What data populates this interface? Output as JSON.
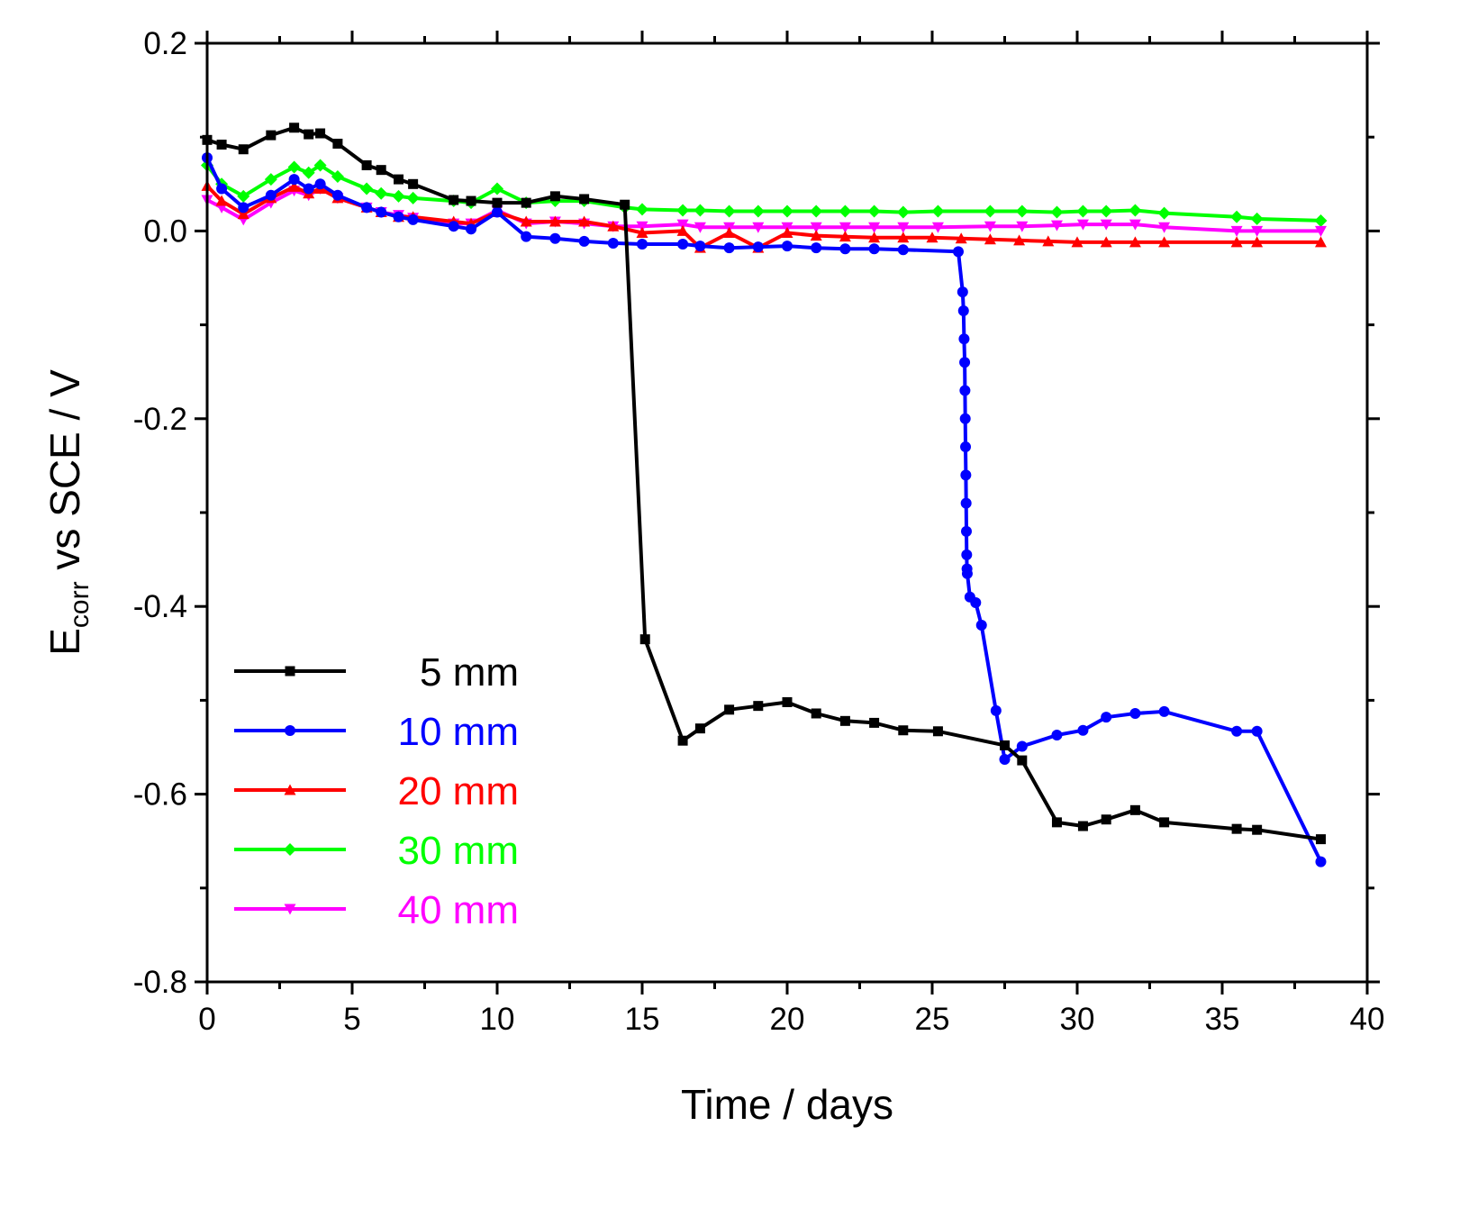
{
  "chart_data": {
    "type": "line",
    "title": "",
    "xlabel": "Time / days",
    "ylabel_main": "E",
    "ylabel_sub": "corr",
    "ylabel_rest": " vs SCE / V",
    "xlim": [
      0,
      40
    ],
    "ylim": [
      -0.8,
      0.2
    ],
    "xticks": [
      0,
      5,
      10,
      15,
      20,
      25,
      30,
      35,
      40
    ],
    "xtick_labels": [
      "0",
      "5",
      "10",
      "15",
      "20",
      "25",
      "30",
      "35",
      "40"
    ],
    "yticks": [
      -0.8,
      -0.6,
      -0.4,
      -0.2,
      0.0,
      0.2
    ],
    "ytick_labels": [
      "-0.8",
      "-0.6",
      "-0.4",
      "-0.2",
      "0.0",
      "0.2"
    ],
    "grid": false,
    "legend_position": "bottom-left",
    "series": [
      {
        "name": "5 mm",
        "color": "#000000",
        "marker": "square",
        "x": [
          0,
          0.5,
          1.25,
          2.2,
          3,
          3.5,
          3.9,
          4.5,
          5.5,
          6,
          6.6,
          7.1,
          8.5,
          9.1,
          10,
          11,
          12,
          13,
          14.4,
          15.1,
          16.4,
          17,
          18,
          19,
          20,
          21,
          22,
          23,
          24,
          25.2,
          27.5,
          28.1,
          29.3,
          30.2,
          31,
          32,
          33,
          35.5,
          36.2,
          38.4
        ],
        "y": [
          0.097,
          0.092,
          0.087,
          0.102,
          0.11,
          0.103,
          0.104,
          0.093,
          0.07,
          0.065,
          0.055,
          0.05,
          0.033,
          0.032,
          0.03,
          0.03,
          0.037,
          0.034,
          0.028,
          -0.435,
          -0.543,
          -0.53,
          -0.51,
          -0.506,
          -0.502,
          -0.514,
          -0.522,
          -0.524,
          -0.532,
          -0.533,
          -0.548,
          -0.564,
          -0.63,
          -0.634,
          -0.627,
          -0.617,
          -0.63,
          -0.637,
          -0.638,
          -0.648
        ]
      },
      {
        "name": "10 mm",
        "color": "#0000FF",
        "marker": "circle",
        "x": [
          0,
          0.5,
          1.25,
          2.2,
          3,
          3.5,
          3.9,
          4.5,
          5.5,
          6,
          6.6,
          7.1,
          8.5,
          9.1,
          10,
          11,
          12,
          13,
          14,
          15,
          16.4,
          17,
          18,
          19,
          20,
          21,
          22,
          23,
          24,
          25.9,
          26.05,
          26.08,
          26.1,
          26.12,
          26.13,
          26.14,
          26.15,
          26.16,
          26.17,
          26.18,
          26.19,
          26.2,
          26.21,
          26.3,
          26.5,
          26.7,
          27.2,
          27.5,
          28.1,
          29.3,
          30.2,
          31,
          32,
          33,
          35.5,
          36.2,
          38.4
        ],
        "y": [
          0.078,
          0.045,
          0.025,
          0.038,
          0.055,
          0.045,
          0.05,
          0.038,
          0.025,
          0.02,
          0.015,
          0.012,
          0.005,
          0.002,
          0.02,
          -0.006,
          -0.008,
          -0.011,
          -0.013,
          -0.014,
          -0.014,
          -0.016,
          -0.018,
          -0.017,
          -0.016,
          -0.018,
          -0.019,
          -0.019,
          -0.02,
          -0.022,
          -0.065,
          -0.085,
          -0.115,
          -0.14,
          -0.17,
          -0.2,
          -0.23,
          -0.26,
          -0.29,
          -0.32,
          -0.345,
          -0.36,
          -0.365,
          -0.39,
          -0.396,
          -0.42,
          -0.511,
          -0.563,
          -0.549,
          -0.537,
          -0.532,
          -0.518,
          -0.514,
          -0.512,
          -0.533,
          -0.533,
          -0.672
        ]
      },
      {
        "name": "20 mm",
        "color": "#FF0000",
        "marker": "triangle-up",
        "x": [
          0,
          0.5,
          1.25,
          2.2,
          3,
          3.5,
          3.9,
          4.5,
          5.5,
          6,
          6.6,
          7.1,
          8.5,
          9.1,
          10,
          11,
          12,
          13,
          14,
          15,
          16.4,
          17,
          18,
          19,
          20,
          21,
          22,
          23,
          24,
          25,
          26,
          27,
          28,
          29,
          30,
          31,
          32,
          33,
          35.5,
          36.2,
          38.4
        ],
        "y": [
          0.048,
          0.032,
          0.018,
          0.035,
          0.047,
          0.04,
          0.045,
          0.035,
          0.025,
          0.02,
          0.015,
          0.015,
          0.01,
          0.008,
          0.02,
          0.01,
          0.01,
          0.01,
          0.005,
          -0.002,
          0.0,
          -0.018,
          -0.002,
          -0.018,
          -0.002,
          -0.005,
          -0.006,
          -0.007,
          -0.007,
          -0.007,
          -0.008,
          -0.009,
          -0.01,
          -0.011,
          -0.012,
          -0.012,
          -0.012,
          -0.012,
          -0.012,
          -0.012,
          -0.012
        ]
      },
      {
        "name": "30 mm",
        "color": "#00FF00",
        "marker": "diamond",
        "x": [
          0,
          0.5,
          1.25,
          2.2,
          3,
          3.5,
          3.9,
          4.5,
          5.5,
          6,
          6.6,
          7.1,
          8.5,
          9.1,
          10,
          11,
          12,
          13,
          14.4,
          15,
          16.4,
          17,
          18,
          19,
          20,
          21,
          22,
          23,
          24,
          25.2,
          27,
          28.1,
          29.3,
          30.2,
          31,
          32,
          33,
          35.5,
          36.2,
          38.4
        ],
        "y": [
          0.07,
          0.05,
          0.037,
          0.055,
          0.068,
          0.062,
          0.07,
          0.058,
          0.045,
          0.04,
          0.037,
          0.035,
          0.032,
          0.03,
          0.045,
          0.03,
          0.032,
          0.032,
          0.025,
          0.023,
          0.022,
          0.022,
          0.021,
          0.021,
          0.021,
          0.021,
          0.021,
          0.021,
          0.02,
          0.021,
          0.021,
          0.021,
          0.02,
          0.021,
          0.021,
          0.022,
          0.019,
          0.015,
          0.013,
          0.011
        ]
      },
      {
        "name": "40 mm",
        "color": "#FF00FF",
        "marker": "triangle-down",
        "x": [
          0,
          0.5,
          1.25,
          2.2,
          3,
          3.5,
          3.9,
          4.5,
          5.5,
          6,
          6.6,
          7.1,
          8.5,
          9.1,
          10,
          11,
          12,
          13,
          14,
          15,
          16.4,
          17,
          18,
          19,
          20,
          21,
          22,
          23,
          24,
          25.2,
          27,
          28.1,
          29.3,
          30.2,
          31,
          32,
          33,
          35.5,
          36.2,
          38.4
        ],
        "y": [
          0.033,
          0.025,
          0.012,
          0.03,
          0.043,
          0.038,
          0.045,
          0.035,
          0.025,
          0.02,
          0.017,
          0.014,
          0.008,
          0.008,
          0.022,
          0.008,
          0.01,
          0.008,
          0.005,
          0.005,
          0.007,
          0.004,
          0.004,
          0.004,
          0.004,
          0.004,
          0.004,
          0.004,
          0.004,
          0.004,
          0.005,
          0.005,
          0.006,
          0.007,
          0.007,
          0.007,
          0.004,
          0.0,
          0.0,
          0.0
        ]
      }
    ]
  }
}
